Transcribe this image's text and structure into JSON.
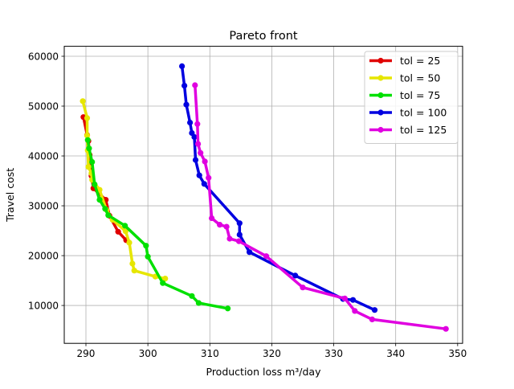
{
  "chart_data": {
    "type": "line",
    "title": "Pareto front",
    "xlabel": "Production loss m³/day",
    "ylabel": "Travel cost",
    "xlim": [
      286.5,
      350.8
    ],
    "ylim": [
      2400,
      62000
    ],
    "xticks": [
      290,
      300,
      310,
      320,
      330,
      340,
      350
    ],
    "yticks": [
      10000,
      20000,
      30000,
      40000,
      50000,
      60000
    ],
    "grid": true,
    "legend": "top-right",
    "series": [
      {
        "name": "tol = 25",
        "color": "#e00000",
        "points": [
          [
            289.6,
            47800
          ],
          [
            290.2,
            44200
          ],
          [
            290.4,
            43000
          ],
          [
            290.6,
            40200
          ],
          [
            290.9,
            36000
          ],
          [
            291.2,
            33500
          ],
          [
            293.2,
            31200
          ],
          [
            293.8,
            28000
          ],
          [
            295.2,
            24800
          ],
          [
            296.5,
            23100
          ]
        ]
      },
      {
        "name": "tol = 50",
        "color": "#e6e600",
        "points": [
          [
            289.5,
            51000
          ],
          [
            290.2,
            47600
          ],
          [
            290.2,
            44100
          ],
          [
            290.3,
            41100
          ],
          [
            290.4,
            37800
          ],
          [
            290.9,
            36500
          ],
          [
            291.0,
            35200
          ],
          [
            292.2,
            33200
          ],
          [
            293.3,
            29200
          ],
          [
            294.3,
            27200
          ],
          [
            296.4,
            24900
          ],
          [
            297.0,
            22600
          ],
          [
            297.5,
            18400
          ],
          [
            297.8,
            17000
          ],
          [
            301.2,
            15800
          ],
          [
            302.8,
            15400
          ]
        ]
      },
      {
        "name": "tol = 75",
        "color": "#00e000",
        "points": [
          [
            290.3,
            43200
          ],
          [
            290.5,
            41500
          ],
          [
            291.0,
            38800
          ],
          [
            291.4,
            34300
          ],
          [
            292.2,
            31200
          ],
          [
            293.1,
            29400
          ],
          [
            293.6,
            28100
          ],
          [
            296.3,
            26000
          ],
          [
            299.7,
            22000
          ],
          [
            300.0,
            19800
          ],
          [
            302.4,
            14500
          ],
          [
            307.1,
            11900
          ],
          [
            308.2,
            10500
          ],
          [
            312.9,
            9400
          ]
        ]
      },
      {
        "name": "tol = 100",
        "color": "#0000e0",
        "points": [
          [
            305.5,
            58000
          ],
          [
            305.9,
            54100
          ],
          [
            306.2,
            50300
          ],
          [
            306.8,
            46700
          ],
          [
            307.1,
            44600
          ],
          [
            307.5,
            43800
          ],
          [
            307.7,
            39200
          ],
          [
            308.3,
            36100
          ],
          [
            309.1,
            34400
          ],
          [
            314.8,
            26500
          ],
          [
            314.8,
            24200
          ],
          [
            316.4,
            20700
          ],
          [
            323.8,
            16000
          ],
          [
            331.5,
            11300
          ],
          [
            333.1,
            11100
          ],
          [
            336.6,
            9100
          ]
        ]
      },
      {
        "name": "tol = 125",
        "color": "#e000e0",
        "points": [
          [
            307.6,
            54200
          ],
          [
            308.0,
            46400
          ],
          [
            308.1,
            42400
          ],
          [
            308.5,
            40600
          ],
          [
            309.2,
            38900
          ],
          [
            309.8,
            35600
          ],
          [
            310.3,
            27500
          ],
          [
            311.6,
            26200
          ],
          [
            312.7,
            25800
          ],
          [
            313.2,
            23400
          ],
          [
            314.7,
            22900
          ],
          [
            319.1,
            19900
          ],
          [
            325.0,
            13600
          ],
          [
            331.8,
            11400
          ],
          [
            333.4,
            8900
          ],
          [
            336.2,
            7200
          ],
          [
            348.1,
            5300
          ]
        ]
      }
    ]
  }
}
